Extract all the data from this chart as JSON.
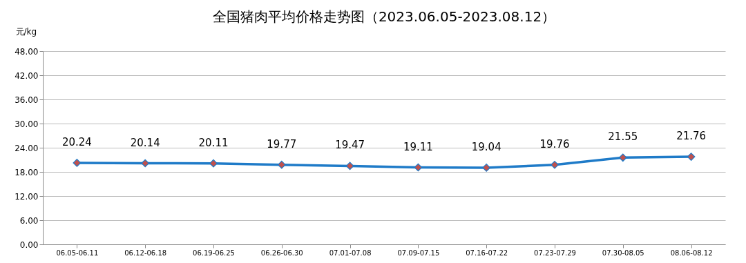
{
  "chart_data": {
    "type": "line",
    "title": "全国猪肉平均价格走势图（2023.06.05-2023.08.12）",
    "ylabel": "元/kg",
    "categories": [
      "06.05-06.11",
      "06.12-06.18",
      "06.19-06.25",
      "06.26-06.30",
      "07.01-07.08",
      "07.09-07.15",
      "07.16-07.22",
      "07.23-07.29",
      "07.30-08.05",
      "08.06-08.12"
    ],
    "series": [
      {
        "color": "#1f7bc8",
        "colors": [
          "#c0504d",
          "#c0504d",
          "#c0504d",
          "#c0504d",
          "#c0504d",
          "#c0504d",
          "#c0504d",
          "#c0504d",
          "#c0504d",
          "#c0504d"
        ],
        "values": [
          20.24,
          20.14,
          20.11,
          19.77,
          19.47,
          19.11,
          19.04,
          19.76,
          21.55,
          21.76
        ]
      }
    ],
    "ylim": [
      0,
      48
    ],
    "yticks": [
      {
        "value": 0,
        "label": "0.00"
      },
      {
        "value": 6,
        "label": "6.00"
      },
      {
        "value": 12,
        "label": "12.00"
      },
      {
        "value": 18,
        "label": "18.00"
      },
      {
        "value": 24,
        "label": "24.00"
      },
      {
        "value": 30,
        "label": "30.00"
      },
      {
        "value": 36,
        "label": "36.00"
      },
      {
        "value": 42,
        "label": "42.00"
      },
      {
        "value": 48,
        "label": "48.00"
      }
    ],
    "grid": "y",
    "marker": "diamond",
    "line_style": "solid",
    "data_labels": true
  }
}
